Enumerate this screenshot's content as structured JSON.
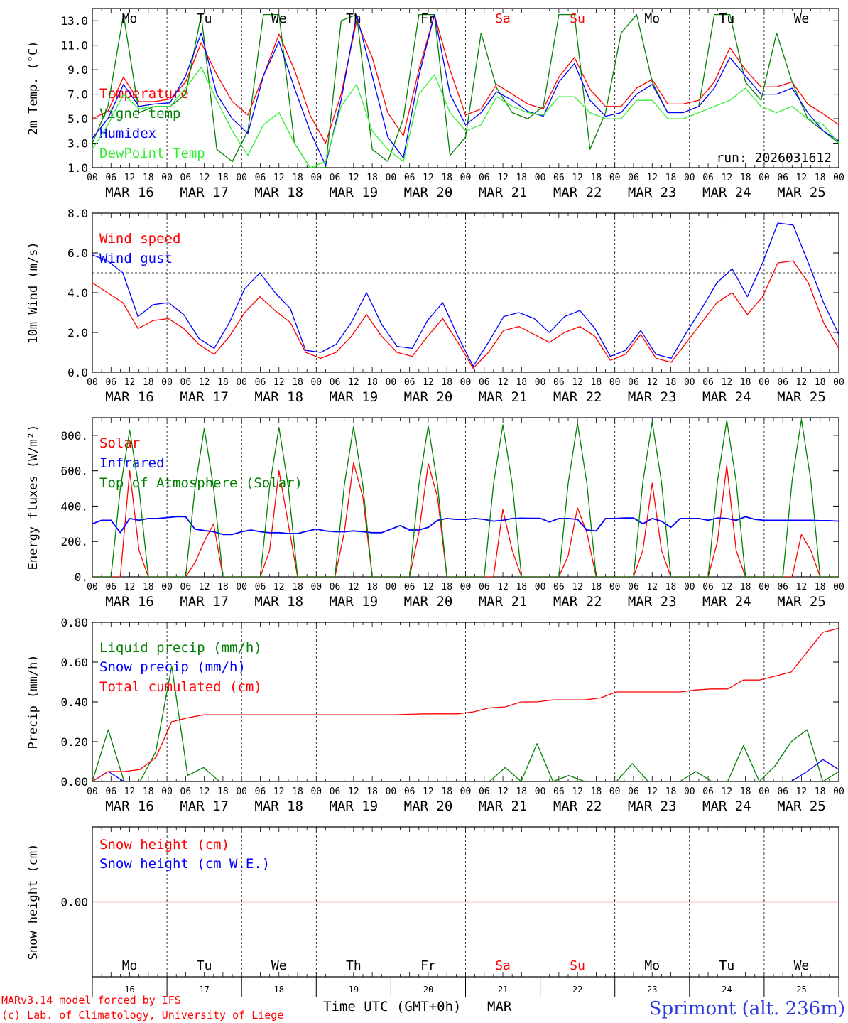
{
  "colors": {
    "red": "#ff0000",
    "green": "#008000",
    "lightgreen": "#33ee33",
    "blue": "#0000ff",
    "axis": "#000000"
  },
  "x_axis": {
    "hour_ticks": [
      "00",
      "06",
      "12",
      "18"
    ],
    "end_tick": "00",
    "dates": [
      "MAR 16",
      "MAR 17",
      "MAR 18",
      "MAR 19",
      "MAR 20",
      "MAR 21",
      "MAR 22",
      "MAR 23",
      "MAR 24",
      "MAR 25"
    ],
    "weekdays": [
      "Mo",
      "Tu",
      "We",
      "Th",
      "Fr",
      "Sa",
      "Su",
      "Mo",
      "Tu",
      "We"
    ],
    "weekday_colors": [
      "#000000",
      "#000000",
      "#000000",
      "#000000",
      "#000000",
      "#ff0000",
      "#ff0000",
      "#000000",
      "#000000",
      "#000000"
    ],
    "day_numbers": [
      "16",
      "17",
      "18",
      "19",
      "20",
      "21",
      "22",
      "23",
      "24",
      "25"
    ],
    "time_label": "Time UTC (GMT+0h)",
    "month_label": "MAR"
  },
  "footer": {
    "model_credit": "MARv3.14 model forced by IFS",
    "lab_credit": "(c) Lab. of Climatology, University of Liege",
    "station": "Sprimont (alt. 236m)"
  },
  "chart_data": [
    {
      "type": "line",
      "id": "temperature",
      "ylabel": "2m Temp. (°C)",
      "ylim": [
        1.0,
        14.0
      ],
      "yticks": [
        1.0,
        3.0,
        5.0,
        7.0,
        9.0,
        11.0,
        13.0
      ],
      "ytick_labels": [
        "1.0",
        "3.0",
        "5.0",
        "7.0",
        "9.0",
        "11.0",
        "13.0"
      ],
      "annotation": "run: 2026031612",
      "x_hours_step": 6,
      "series": [
        {
          "name": "Temperature",
          "color": "#ff0000",
          "values": [
            5.0,
            5.6,
            8.4,
            6.4,
            6.4,
            6.6,
            8.0,
            11.2,
            8.6,
            6.4,
            5.3,
            8.5,
            11.9,
            9.0,
            5.3,
            3.0,
            7.0,
            13.0,
            10.0,
            5.5,
            3.6,
            9.0,
            13.5,
            9.0,
            5.3,
            5.8,
            7.8,
            7.0,
            6.2,
            5.8,
            8.4,
            10.0,
            7.4,
            6.0,
            6.0,
            7.5,
            8.2,
            6.2,
            6.2,
            6.5,
            8.0,
            10.8,
            9.0,
            7.6,
            7.6,
            8.0,
            6.2,
            5.4,
            4.5
          ]
        },
        {
          "name": "Vigne temp",
          "color": "#008000",
          "values": [
            3.0,
            6.0,
            13.5,
            5.5,
            6.0,
            6.0,
            7.0,
            13.5,
            2.5,
            1.5,
            4.0,
            13.5,
            13.5,
            3.0,
            1.0,
            1.0,
            13.0,
            13.5,
            2.5,
            1.5,
            5.0,
            13.5,
            13.5,
            2.0,
            3.5,
            12.0,
            7.5,
            5.5,
            5.0,
            6.0,
            13.5,
            13.5,
            2.5,
            5.5,
            12.0,
            13.5,
            8.0,
            5.5,
            5.5,
            6.0,
            13.5,
            13.5,
            8.0,
            6.5,
            12.0,
            8.0,
            5.0,
            4.0,
            3.0
          ]
        },
        {
          "name": "Humidex",
          "color": "#0000ff",
          "values": [
            3.4,
            5.0,
            7.8,
            6.0,
            6.2,
            6.3,
            8.5,
            12.0,
            7.0,
            5.0,
            3.8,
            8.5,
            11.3,
            7.5,
            4.0,
            1.2,
            6.5,
            13.5,
            8.5,
            3.5,
            1.8,
            8.5,
            13.5,
            7.0,
            4.5,
            5.5,
            7.2,
            6.5,
            5.6,
            5.2,
            8.0,
            9.5,
            6.5,
            5.2,
            5.5,
            7.0,
            7.8,
            5.5,
            5.5,
            6.0,
            7.5,
            10.0,
            8.5,
            7.0,
            7.0,
            7.5,
            5.5,
            4.0,
            3.2
          ]
        },
        {
          "name": "DewPoint Temp",
          "color": "#33ee33",
          "values": [
            2.5,
            4.5,
            7.0,
            5.8,
            6.0,
            6.0,
            7.5,
            9.2,
            6.5,
            4.0,
            2.0,
            4.5,
            5.5,
            3.0,
            1.0,
            1.5,
            6.0,
            7.8,
            4.0,
            2.5,
            1.5,
            7.0,
            8.6,
            5.5,
            4.0,
            4.5,
            6.8,
            6.0,
            5.5,
            5.3,
            6.8,
            6.8,
            5.5,
            5.0,
            5.0,
            6.5,
            6.5,
            5.0,
            5.0,
            5.5,
            6.0,
            6.5,
            7.5,
            6.0,
            5.5,
            6.0,
            5.0,
            4.5,
            3.0
          ]
        }
      ]
    },
    {
      "type": "line",
      "id": "wind",
      "ylabel": "10m Wind (m/s)",
      "ylim": [
        0.0,
        8.0
      ],
      "yticks": [
        0.0,
        2.0,
        4.0,
        6.0,
        8.0
      ],
      "ytick_labels": [
        "0.0",
        "2.0",
        "4.0",
        "6.0",
        "8.0"
      ],
      "reference_line": 5.0,
      "x_hours_step": 6,
      "series": [
        {
          "name": "Wind speed",
          "color": "#ff0000",
          "values": [
            4.5,
            4.0,
            3.5,
            2.2,
            2.6,
            2.7,
            2.2,
            1.4,
            0.9,
            1.8,
            3.0,
            3.8,
            3.1,
            2.5,
            1.0,
            0.7,
            1.0,
            1.8,
            2.9,
            1.8,
            1.0,
            0.8,
            1.8,
            2.7,
            1.5,
            0.2,
            1.0,
            2.1,
            2.3,
            1.9,
            1.5,
            2.0,
            2.3,
            1.8,
            0.6,
            0.9,
            1.9,
            0.7,
            0.5,
            1.5,
            2.5,
            3.5,
            4.0,
            2.9,
            3.8,
            5.5,
            5.6,
            4.5,
            2.5,
            1.2
          ]
        },
        {
          "name": "Wind gust",
          "color": "#0000ff",
          "values": [
            5.9,
            5.6,
            5.0,
            2.8,
            3.4,
            3.5,
            2.9,
            1.7,
            1.2,
            2.5,
            4.2,
            5.0,
            4.0,
            3.2,
            1.1,
            1.0,
            1.4,
            2.5,
            4.0,
            2.4,
            1.3,
            1.2,
            2.6,
            3.5,
            1.8,
            0.3,
            1.5,
            2.8,
            3.0,
            2.7,
            2.0,
            2.8,
            3.1,
            2.2,
            0.8,
            1.1,
            2.1,
            0.9,
            0.7,
            2.0,
            3.2,
            4.5,
            5.2,
            3.8,
            5.5,
            7.5,
            7.4,
            5.5,
            3.5,
            1.9
          ]
        }
      ]
    },
    {
      "type": "line",
      "id": "energy",
      "ylabel": "Energy fluxes (W/m²)",
      "ylim": [
        0,
        900
      ],
      "yticks": [
        0,
        200,
        400,
        600,
        800
      ],
      "ytick_labels": [
        "0.",
        "200.",
        "400.",
        "600.",
        "800."
      ],
      "x_hours_step": 3,
      "series": [
        {
          "name": "Solar",
          "color": "#ff0000",
          "values": [
            0,
            0,
            0,
            0,
            600,
            150,
            0,
            0,
            0,
            0,
            0,
            80,
            200,
            300,
            0,
            0,
            0,
            0,
            0,
            150,
            600,
            300,
            0,
            0,
            0,
            0,
            0,
            250,
            645,
            450,
            0,
            0,
            0,
            0,
            0,
            250,
            640,
            450,
            0,
            0,
            0,
            0,
            0,
            0,
            380,
            150,
            0,
            0,
            0,
            0,
            0,
            120,
            390,
            250,
            0,
            0,
            0,
            0,
            0,
            150,
            530,
            150,
            0,
            0,
            0,
            0,
            0,
            200,
            630,
            150,
            0,
            0,
            0,
            0,
            0,
            0,
            240,
            150,
            0,
            0,
            0
          ]
        },
        {
          "name": "Infrared",
          "color": "#0000ff",
          "values": [
            300,
            320,
            320,
            250,
            330,
            320,
            330,
            330,
            335,
            340,
            340,
            270,
            262,
            255,
            240,
            240,
            255,
            265,
            255,
            250,
            250,
            245,
            245,
            258,
            270,
            260,
            255,
            255,
            260,
            255,
            250,
            250,
            270,
            290,
            265,
            265,
            280,
            320,
            330,
            325,
            325,
            330,
            325,
            315,
            320,
            330,
            332,
            331,
            331,
            310,
            330,
            330,
            325,
            265,
            260,
            330,
            330,
            333,
            333,
            300,
            330,
            315,
            280,
            330,
            330,
            330,
            320,
            333,
            330,
            320,
            340,
            325,
            320,
            320,
            320,
            320,
            320,
            320,
            318,
            318,
            315
          ]
        },
        {
          "name": "Top of Atmosphere (Solar)",
          "color": "#008000",
          "values": [
            0,
            0,
            0,
            500,
            830,
            500,
            0,
            0,
            0,
            0,
            0,
            500,
            840,
            500,
            0,
            0,
            0,
            0,
            0,
            510,
            845,
            510,
            0,
            0,
            0,
            0,
            0,
            515,
            850,
            515,
            0,
            0,
            0,
            0,
            0,
            520,
            855,
            520,
            0,
            0,
            0,
            0,
            0,
            525,
            860,
            525,
            0,
            0,
            0,
            0,
            0,
            530,
            870,
            530,
            0,
            0,
            0,
            0,
            0,
            535,
            875,
            535,
            0,
            0,
            0,
            0,
            0,
            540,
            885,
            540,
            0,
            0,
            0,
            0,
            0,
            545,
            890,
            545,
            0,
            0,
            0
          ]
        }
      ]
    },
    {
      "type": "line",
      "id": "precip",
      "ylabel": "Precip (mm/h)",
      "ylim": [
        0.0,
        0.8
      ],
      "yticks": [
        0.0,
        0.2,
        0.4,
        0.6,
        0.8
      ],
      "ytick_labels": [
        "0.00",
        "0.20",
        "0.40",
        "0.60",
        "0.80"
      ],
      "x_hours_step": 6,
      "series": [
        {
          "name": "Liquid precip (mm/h)",
          "color": "#008000",
          "values": [
            0,
            0.26,
            0,
            0,
            0.15,
            0.58,
            0.03,
            0.07,
            0,
            0,
            0,
            0,
            0,
            0,
            0,
            0,
            0,
            0,
            0,
            0,
            0,
            0,
            0,
            0,
            0,
            0,
            0.07,
            0,
            0.19,
            0,
            0.03,
            0,
            0,
            0,
            0.09,
            0,
            0,
            0,
            0.05,
            0,
            0,
            0.18,
            0,
            0.08,
            0.2,
            0.26,
            0,
            0.05
          ]
        },
        {
          "name": "Snow precip (mm/h)",
          "color": "#0000ff",
          "values": [
            0,
            0.05,
            0,
            0,
            0,
            0,
            0,
            0,
            0,
            0,
            0,
            0,
            0,
            0,
            0,
            0,
            0,
            0,
            0,
            0,
            0,
            0,
            0,
            0,
            0,
            0,
            0,
            0,
            0,
            0,
            0,
            0,
            0,
            0,
            0,
            0,
            0,
            0,
            0,
            0,
            0,
            0,
            0,
            0,
            0,
            0.05,
            0.11,
            0.06
          ]
        },
        {
          "name": "Total cumulated (cm)",
          "color": "#ff0000",
          "values": [
            0,
            0.05,
            0.05,
            0.06,
            0.12,
            0.3,
            0.32,
            0.335,
            0.335,
            0.335,
            0.335,
            0.335,
            0.335,
            0.335,
            0.335,
            0.335,
            0.335,
            0.335,
            0.335,
            0.335,
            0.338,
            0.34,
            0.34,
            0.34,
            0.35,
            0.37,
            0.375,
            0.4,
            0.4,
            0.41,
            0.41,
            0.41,
            0.42,
            0.45,
            0.45,
            0.45,
            0.45,
            0.45,
            0.46,
            0.465,
            0.465,
            0.51,
            0.51,
            0.53,
            0.55,
            0.65,
            0.75,
            0.77
          ]
        }
      ]
    },
    {
      "type": "line",
      "id": "snow",
      "ylabel": "Snow height (cm)",
      "ylim": [
        -1.0,
        1.0
      ],
      "yticks": [
        0.0
      ],
      "ytick_labels": [
        "0.00"
      ],
      "x_hours_step": 6,
      "series": [
        {
          "name": "Snow height (cm)",
          "color": "#ff0000",
          "values": [
            0,
            0
          ]
        },
        {
          "name": "Snow height (cm W.E.)",
          "color": "#0000ff",
          "values": []
        }
      ]
    }
  ]
}
